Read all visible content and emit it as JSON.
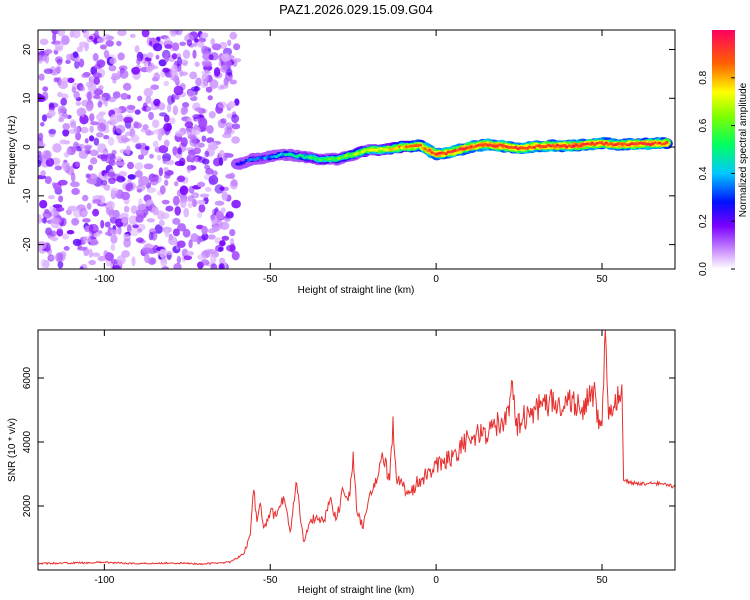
{
  "title": "PAZ1.2026.029.15.09.G04",
  "colors": {
    "snr_line": "#e8302e",
    "axis": "#000000",
    "background": "#ffffff"
  },
  "chart_data": [
    {
      "type": "heatmap",
      "title": "PAZ1.2026.029.15.09.G04",
      "xlabel": "Height of straight line (km)",
      "ylabel": "Frequency (Hz)",
      "xlim": [
        -120,
        72
      ],
      "ylim": [
        -25,
        24
      ],
      "x_ticks": [
        -100,
        -50,
        0,
        50
      ],
      "x_tick_labels": [
        "-100",
        "-50",
        "0",
        "50"
      ],
      "y_ticks": [
        -20,
        -10,
        0,
        10,
        20
      ],
      "y_tick_labels": [
        "-20",
        "-10",
        "0",
        "10",
        "20"
      ],
      "noise_region_x": [
        -120,
        -60
      ],
      "ridge": {
        "x": [
          -60,
          -55,
          -50,
          -45,
          -40,
          -35,
          -30,
          -25,
          -20,
          -15,
          -10,
          -5,
          0,
          5,
          10,
          15,
          20,
          25,
          30,
          35,
          40,
          45,
          50,
          55,
          60,
          65,
          70
        ],
        "freq": [
          -3.5,
          -2.5,
          -2,
          -1.5,
          -2,
          -2.5,
          -2.5,
          -1.5,
          -0.5,
          -0.5,
          0,
          0.3,
          -1.5,
          -1,
          0,
          0.5,
          0.2,
          -0.3,
          0.1,
          0.3,
          0.2,
          0.5,
          0.8,
          0.5,
          0.6,
          0.7,
          0.8
        ],
        "amplitude": [
          0.25,
          0.35,
          0.35,
          0.45,
          0.5,
          0.55,
          0.6,
          0.65,
          0.7,
          0.75,
          0.8,
          0.85,
          0.9,
          0.9,
          0.9,
          0.92,
          0.92,
          0.9,
          0.9,
          0.92,
          0.92,
          0.92,
          0.92,
          0.9,
          0.9,
          0.9,
          0.88
        ]
      },
      "colorbar": {
        "label": "Normalized spectral amplitude",
        "range": [
          0,
          1
        ],
        "ticks": [
          0.0,
          0.2,
          0.4,
          0.6,
          0.8
        ],
        "tick_labels": [
          "0.0",
          "0.2",
          "0.4",
          "0.6",
          "0.8"
        ]
      }
    },
    {
      "type": "line",
      "xlabel": "Height of straight line (km)",
      "ylabel": "SNR (10 * v/v)",
      "xlim": [
        -120,
        72
      ],
      "ylim": [
        0,
        7500
      ],
      "x_ticks": [
        -100,
        -50,
        0,
        50
      ],
      "x_tick_labels": [
        "-100",
        "-50",
        "0",
        "50"
      ],
      "y_ticks": [
        2000,
        4000,
        6000
      ],
      "y_tick_labels": [
        "2000",
        "4000",
        "6000"
      ],
      "series": [
        {
          "name": "SNR",
          "x": [
            -120,
            -110,
            -100,
            -90,
            -80,
            -70,
            -62,
            -58,
            -56,
            -55,
            -54,
            -53,
            -52,
            -50,
            -48,
            -46,
            -44,
            -42,
            -40,
            -38,
            -36,
            -34,
            -32,
            -30,
            -28,
            -26,
            -25,
            -24,
            -22,
            -20,
            -18,
            -16,
            -14,
            -13,
            -12,
            -10,
            -8,
            -6,
            -4,
            -2,
            0,
            2,
            4,
            6,
            8,
            10,
            12,
            14,
            16,
            18,
            20,
            22,
            23,
            24,
            26,
            28,
            30,
            32,
            34,
            36,
            37,
            38,
            40,
            42,
            44,
            46,
            48,
            49,
            50,
            51,
            52,
            53,
            54,
            55,
            56,
            56.5,
            57,
            60,
            64,
            68,
            72
          ],
          "y": [
            200,
            220,
            240,
            200,
            220,
            190,
            250,
            500,
            1100,
            2500,
            1500,
            2100,
            1300,
            1800,
            1700,
            2300,
            1200,
            2700,
            900,
            1500,
            1700,
            1500,
            2200,
            1600,
            2500,
            2300,
            3700,
            1900,
            1300,
            2400,
            2700,
            3500,
            2800,
            4800,
            2900,
            2600,
            2400,
            2700,
            2900,
            3100,
            3300,
            3400,
            3500,
            3700,
            3900,
            4100,
            4200,
            4200,
            4400,
            4500,
            4600,
            4800,
            5900,
            4500,
            4700,
            4900,
            5000,
            5100,
            5200,
            5300,
            5400,
            5000,
            5300,
            5200,
            5100,
            5300,
            5500,
            4400,
            4500,
            7500,
            4700,
            4800,
            5500,
            5200,
            5800,
            2800,
            2800,
            2700,
            2700,
            2700,
            2600
          ]
        }
      ]
    }
  ]
}
